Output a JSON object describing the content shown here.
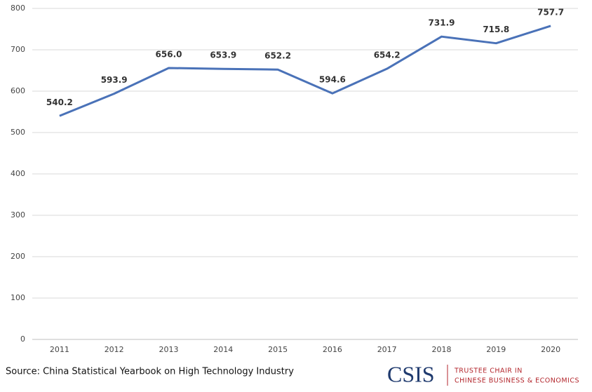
{
  "chart_data": {
    "type": "line",
    "categories": [
      "2011",
      "2012",
      "2013",
      "2014",
      "2015",
      "2016",
      "2017",
      "2018",
      "2019",
      "2020"
    ],
    "series": [
      {
        "color": "#4a72b8",
        "values": [
          540.2,
          593.9,
          656.0,
          653.9,
          652.2,
          594.6,
          654.2,
          731.9,
          715.8,
          757.7
        ],
        "value_labels": [
          "540.2",
          "593.9",
          "656.0",
          "653.9",
          "652.2",
          "594.6",
          "654.2",
          "731.9",
          "715.8",
          "757.7"
        ]
      }
    ],
    "ylim": [
      0,
      800
    ],
    "yticks": [
      0,
      100,
      200,
      300,
      400,
      500,
      600,
      700,
      800
    ],
    "grid": true,
    "source": "Source: China Statistical Yearbook on High Technology Industry",
    "logo": {
      "name": "CSIS",
      "line1": "TRUSTEE CHAIR IN",
      "line2": "CHINESE BUSINESS & ECONOMICS"
    }
  }
}
